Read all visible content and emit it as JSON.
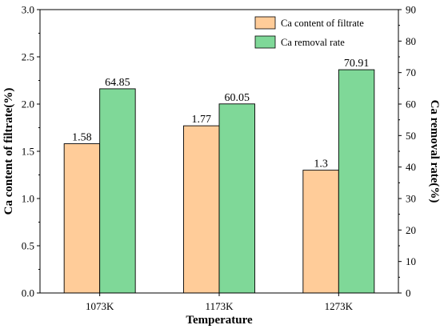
{
  "chart_data": {
    "type": "bar",
    "categories": [
      "1073K",
      "1173K",
      "1273K"
    ],
    "xlabel": "Temperature",
    "ylabel_left": "Ca content of filtrate(%)",
    "ylabel_right": "Ca removal rate(%)",
    "ylim_left": [
      0,
      3.0
    ],
    "ylim_right": [
      0,
      90
    ],
    "yticks_left": [
      "0.0",
      "0.5",
      "1.0",
      "1.5",
      "2.0",
      "2.5",
      "3.0"
    ],
    "yticks_right": [
      "0",
      "10",
      "20",
      "30",
      "40",
      "50",
      "60",
      "70",
      "80",
      "90"
    ],
    "grid": false,
    "legend_position": "top-right",
    "series": [
      {
        "name": "Ca content of filtrate",
        "axis": "left",
        "values": [
          1.58,
          1.77,
          1.3
        ],
        "labels": [
          "1.58",
          "1.77",
          "1.3"
        ],
        "color": "#FFCC99"
      },
      {
        "name": "Ca removal rate",
        "axis": "right",
        "values": [
          64.85,
          60.05,
          70.91
        ],
        "labels": [
          "64.85",
          "60.05",
          "70.91"
        ],
        "color": "#7FD898"
      }
    ]
  }
}
